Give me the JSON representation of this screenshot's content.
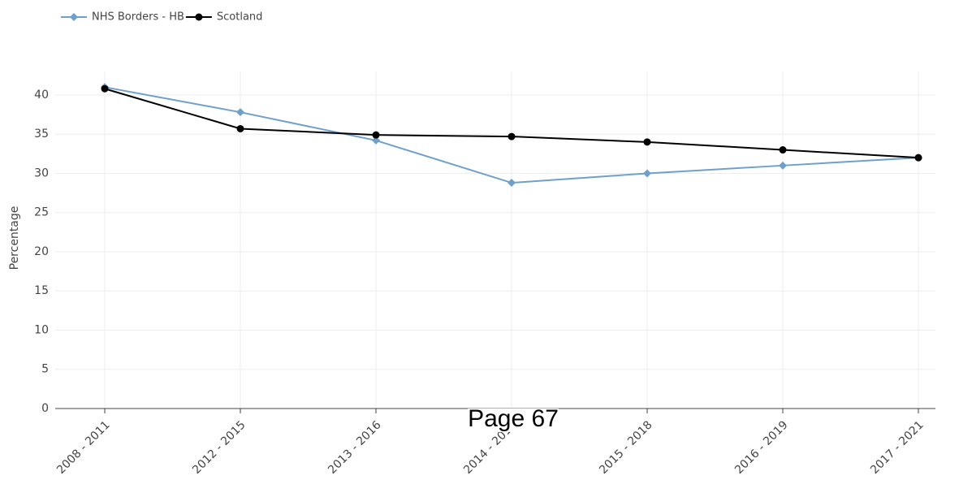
{
  "chart_data": {
    "type": "line",
    "y_label": "Percentage",
    "categories": [
      "2008 - 2011",
      "2012 - 2015",
      "2013 - 2016",
      "2014 - 2017",
      "2015 - 2018",
      "2016 - 2019",
      "2017 - 2021"
    ],
    "series": [
      {
        "name": "NHS Borders - HB",
        "color": "#6fa0cc",
        "marker": "diamond",
        "values": [
          41,
          37.8,
          34.2,
          28.8,
          30,
          31,
          32
        ]
      },
      {
        "name": "Scotland",
        "color": "#000000",
        "marker": "circle",
        "values": [
          40.8,
          35.7,
          34.9,
          34.7,
          34,
          33,
          32
        ]
      }
    ],
    "ylim": [
      0,
      43
    ],
    "yticks": [
      0,
      5,
      10,
      15,
      20,
      25,
      30,
      35,
      40
    ],
    "grid": true,
    "legend": "top-left",
    "annotation": "Page 67"
  }
}
